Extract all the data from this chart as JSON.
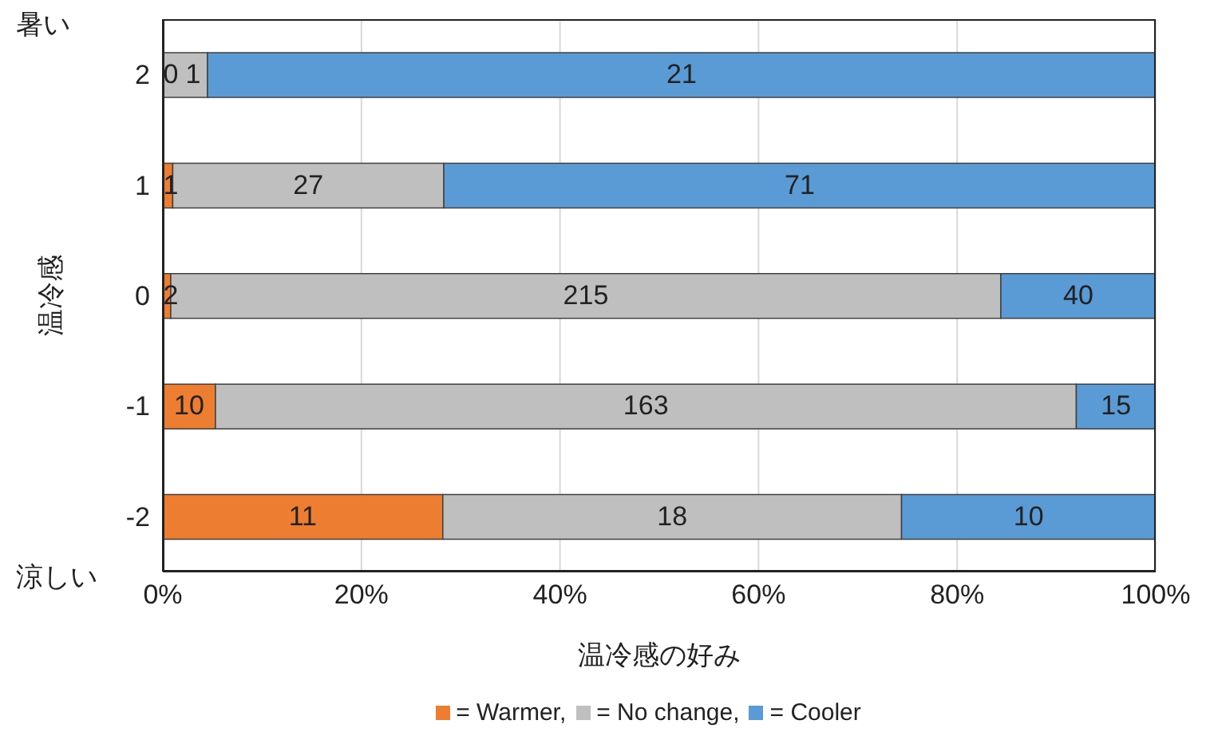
{
  "chart_data": {
    "type": "bar",
    "orientation": "horizontal",
    "stacked": true,
    "ylabel": "温冷感",
    "xlabel": "温冷感の好み",
    "categories": [
      "2",
      "1",
      "0",
      "-1",
      "-2"
    ],
    "series": [
      {
        "name": "= Warmer,",
        "color": "#ed7d31",
        "values": [
          0,
          1.0,
          0.8,
          5.3,
          28.2
        ]
      },
      {
        "name": "= No change,",
        "color": "#bfbfbf",
        "values": [
          4.5,
          27.3,
          83.6,
          86.7,
          46.2
        ]
      },
      {
        "name": "= Cooler",
        "color": "#5b9bd5",
        "values": [
          95.5,
          71.7,
          15.6,
          8.0,
          25.6
        ]
      }
    ],
    "xlim": [
      0,
      100
    ],
    "xticks": [
      {
        "value": 0,
        "label": "0%"
      },
      {
        "value": 20,
        "label": "20%"
      },
      {
        "value": 40,
        "label": "40%"
      },
      {
        "value": 60,
        "label": "60%"
      },
      {
        "value": 80,
        "label": "80%"
      },
      {
        "value": 100,
        "label": "100%"
      }
    ],
    "grid": "x",
    "legend": "bottom",
    "annotations": [
      "暑い",
      "涼しい",
      "0",
      "1",
      "21",
      "1",
      "27",
      "71",
      "2",
      "215",
      "40",
      "10",
      "163",
      "15",
      "11",
      "18",
      "10"
    ]
  }
}
